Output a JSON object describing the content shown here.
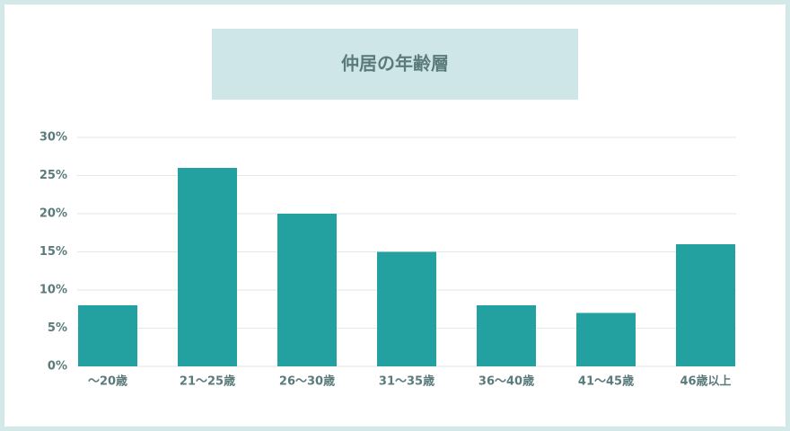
{
  "chart_data": {
    "type": "bar",
    "title": "仲居の年齢層",
    "categories": [
      "～20歳",
      "21～25歳",
      "26～30歳",
      "31～35歳",
      "36～40歳",
      "41～45歳",
      "46歳以上"
    ],
    "values": [
      8,
      26,
      20,
      15,
      8,
      7,
      16
    ],
    "color": "#23a0a0",
    "ylim": [
      0,
      30
    ],
    "yticks": [
      {
        "value": 0,
        "label": "0%"
      },
      {
        "value": 5,
        "label": "5%"
      },
      {
        "value": 10,
        "label": "10%"
      },
      {
        "value": 15,
        "label": "15%"
      },
      {
        "value": 20,
        "label": "20%"
      },
      {
        "value": 25,
        "label": "25%"
      },
      {
        "value": 30,
        "label": "30%"
      }
    ],
    "grid": true
  }
}
